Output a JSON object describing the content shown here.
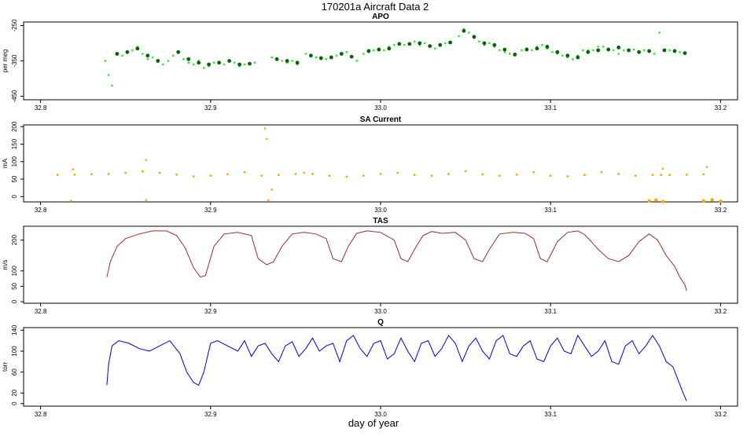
{
  "figure": {
    "title": "170201a   Aircraft Data 2",
    "xlabel": "day of year"
  },
  "chart_data": [
    {
      "type": "scatter",
      "title": "APO",
      "ylabel": "per meg",
      "xlim": [
        32.79,
        33.21
      ],
      "ylim": [
        -460,
        -240
      ],
      "xticks": [
        "32.8",
        "32.9",
        "33.0",
        "33.1",
        "33.2"
      ],
      "xtick_values": [
        32.8,
        32.9,
        33.0,
        33.1,
        33.2
      ],
      "yticks": [
        "-450",
        "-350",
        "-250"
      ],
      "ytick_values": [
        -450,
        -350,
        -250
      ],
      "colors": {
        "raw": "#33ee33",
        "avg": "#006400"
      },
      "series": [
        {
          "style": "points",
          "x": [
            32.838,
            32.84,
            32.842,
            32.845,
            32.848,
            32.851,
            32.854,
            32.857,
            32.86,
            32.863,
            32.866,
            32.869,
            32.872,
            32.875,
            32.878,
            32.881,
            32.884,
            32.887,
            32.89,
            32.893,
            32.896,
            32.899,
            32.902,
            32.905,
            32.908,
            32.911,
            32.914,
            32.917,
            32.92,
            32.923,
            32.926,
            32.936,
            32.939,
            32.942,
            32.945,
            32.948,
            32.951,
            32.956,
            32.959,
            32.962,
            32.965,
            32.968,
            32.971,
            32.974,
            32.977,
            32.98,
            32.983,
            32.986,
            32.99,
            32.993,
            32.996,
            32.999,
            33.002,
            33.005,
            33.008,
            33.011,
            33.014,
            33.017,
            33.02,
            33.023,
            33.026,
            33.029,
            33.032,
            33.035,
            33.038,
            33.041,
            33.046,
            33.049,
            33.052,
            33.055,
            33.058,
            33.061,
            33.064,
            33.067,
            33.07,
            33.073,
            33.076,
            33.079,
            33.083,
            33.086,
            33.089,
            33.092,
            33.095,
            33.098,
            33.101,
            33.104,
            33.107,
            33.11,
            33.113,
            33.116,
            33.119,
            33.122,
            33.125,
            33.128,
            33.131,
            33.134,
            33.137,
            33.14,
            33.143,
            33.146,
            33.149,
            33.152,
            33.155,
            33.158,
            33.161,
            33.164,
            33.167,
            33.17,
            33.173,
            33.176,
            33.179
          ],
          "y": [
            -350,
            -390,
            -420,
            -330,
            -335,
            -325,
            -320,
            -310,
            -330,
            -345,
            -340,
            -350,
            -360,
            -350,
            -335,
            -325,
            -345,
            -355,
            -360,
            -350,
            -370,
            -365,
            -355,
            -355,
            -360,
            -350,
            -355,
            -365,
            -360,
            -360,
            -355,
            -340,
            -345,
            -350,
            -355,
            -350,
            -360,
            -330,
            -335,
            -340,
            -345,
            -345,
            -340,
            -335,
            -330,
            -325,
            -340,
            -350,
            -330,
            -325,
            -320,
            -315,
            -320,
            -310,
            -305,
            -300,
            -305,
            -300,
            -295,
            -305,
            -300,
            -310,
            -315,
            -305,
            -300,
            -295,
            -280,
            -260,
            -270,
            -285,
            -295,
            -305,
            -300,
            -310,
            -320,
            -325,
            -330,
            -335,
            -320,
            -315,
            -320,
            -310,
            -305,
            -315,
            -325,
            -330,
            -335,
            -340,
            -345,
            -335,
            -320,
            -320,
            -320,
            -310,
            -310,
            -315,
            -320,
            -330,
            -320,
            -320,
            -318,
            -325,
            -320,
            -325,
            -330,
            -270,
            -320,
            -320,
            -325,
            -325,
            -330
          ]
        },
        {
          "style": "points-bold",
          "x": [
            32.845,
            32.851,
            32.857,
            32.863,
            32.869,
            32.881,
            32.887,
            32.893,
            32.899,
            32.905,
            32.911,
            32.917,
            32.923,
            32.939,
            32.945,
            32.951,
            32.959,
            32.965,
            32.971,
            32.977,
            32.983,
            32.993,
            32.999,
            33.005,
            33.011,
            33.017,
            33.023,
            33.029,
            33.035,
            33.041,
            33.049,
            33.055,
            33.061,
            33.067,
            33.073,
            33.079,
            33.086,
            33.092,
            33.098,
            33.104,
            33.11,
            33.116,
            33.122,
            33.128,
            33.134,
            33.14,
            33.146,
            33.152,
            33.158,
            33.167,
            33.173,
            33.179
          ],
          "y": [
            -330,
            -325,
            -315,
            -335,
            -350,
            -325,
            -345,
            -355,
            -360,
            -355,
            -350,
            -360,
            -358,
            -345,
            -350,
            -355,
            -335,
            -342,
            -340,
            -330,
            -338,
            -322,
            -318,
            -315,
            -302,
            -302,
            -300,
            -308,
            -305,
            -298,
            -265,
            -282,
            -300,
            -305,
            -318,
            -332,
            -318,
            -315,
            -310,
            -325,
            -335,
            -340,
            -325,
            -320,
            -318,
            -312,
            -320,
            -325,
            -322,
            -320,
            -322,
            -328
          ]
        }
      ]
    },
    {
      "type": "scatter",
      "title": "SA Current",
      "ylabel": "mA",
      "xlim": [
        32.79,
        33.21
      ],
      "ylim": [
        -15,
        205
      ],
      "xticks": [
        "32.8",
        "32.9",
        "33.0",
        "33.1",
        "33.2"
      ],
      "xtick_values": [
        32.8,
        32.9,
        33.0,
        33.1,
        33.2
      ],
      "yticks": [
        "0",
        "50",
        "100",
        "150",
        "200"
      ],
      "ytick_values": [
        0,
        50,
        100,
        150,
        200
      ],
      "colors": {
        "main": "#ffa500"
      },
      "series": [
        {
          "style": "points",
          "x": [
            32.81,
            32.82,
            32.83,
            32.84,
            32.85,
            32.86,
            32.87,
            32.88,
            32.89,
            32.9,
            32.91,
            32.92,
            32.93,
            32.94,
            32.95,
            32.955,
            32.96,
            32.97,
            32.98,
            32.99,
            33.0,
            33.01,
            33.02,
            33.03,
            33.04,
            33.05,
            33.06,
            33.07,
            33.08,
            33.09,
            33.1,
            33.11,
            33.12,
            33.13,
            33.14,
            33.15,
            33.16,
            33.165,
            33.17,
            33.18,
            33.19
          ],
          "y": [
            62,
            63,
            64,
            65,
            68,
            72,
            68,
            63,
            58,
            60,
            64,
            70,
            60,
            62,
            65,
            68,
            65,
            60,
            57,
            60,
            65,
            68,
            62,
            60,
            65,
            73,
            64,
            60,
            63,
            70,
            60,
            58,
            62,
            70,
            65,
            60,
            62,
            62,
            62,
            63,
            64
          ]
        },
        {
          "style": "outliers",
          "x": [
            32.818,
            32.819,
            32.862,
            32.932,
            32.933,
            32.934,
            32.936,
            32.862,
            33.166,
            33.192
          ],
          "y": [
            -12,
            78,
            105,
            195,
            165,
            -10,
            20,
            -10,
            80,
            85
          ]
        },
        {
          "style": "dropout",
          "x": [
            33.158,
            33.162,
            33.166,
            33.19,
            33.195,
            33.2
          ],
          "y": [
            -12,
            -10,
            -14,
            -12,
            -9,
            -13
          ]
        }
      ]
    },
    {
      "type": "line",
      "title": "TAS",
      "ylabel": "m/s",
      "xlim": [
        32.79,
        33.21
      ],
      "ylim": [
        -5,
        245
      ],
      "xticks": [
        "32.8",
        "32.9",
        "33.0",
        "33.1",
        "33.2"
      ],
      "xtick_values": [
        32.8,
        32.9,
        33.0,
        33.1,
        33.2
      ],
      "yticks": [
        "0",
        "50",
        "100",
        "200"
      ],
      "ytick_values": [
        0,
        50,
        100,
        200
      ],
      "colors": {
        "main": "#a52a2a"
      },
      "series": [
        {
          "x": [
            32.839,
            32.841,
            32.845,
            32.85,
            32.858,
            32.866,
            32.874,
            32.88,
            32.885,
            32.89,
            32.894,
            32.897,
            32.902,
            32.908,
            32.916,
            32.924,
            32.928,
            32.933,
            32.937,
            32.942,
            32.948,
            32.955,
            32.962,
            32.968,
            32.972,
            32.977,
            32.981,
            32.986,
            32.992,
            33.0,
            33.008,
            33.012,
            33.016,
            33.02,
            33.025,
            33.03,
            33.036,
            33.044,
            33.05,
            33.055,
            33.06,
            33.064,
            33.07,
            33.078,
            33.085,
            33.09,
            33.094,
            33.098,
            33.104,
            33.11,
            33.116,
            33.12,
            33.124,
            33.128,
            33.134,
            33.14,
            33.146,
            33.152,
            33.158,
            33.163,
            33.168,
            33.173,
            33.176,
            33.179,
            33.18
          ],
          "y": [
            80,
            130,
            180,
            205,
            220,
            230,
            230,
            215,
            175,
            110,
            80,
            85,
            180,
            220,
            225,
            215,
            140,
            120,
            130,
            180,
            220,
            225,
            220,
            205,
            140,
            130,
            180,
            222,
            230,
            225,
            200,
            140,
            130,
            170,
            215,
            228,
            222,
            225,
            200,
            140,
            130,
            170,
            220,
            225,
            222,
            205,
            140,
            130,
            195,
            225,
            230,
            218,
            195,
            170,
            140,
            130,
            150,
            195,
            220,
            200,
            150,
            115,
            80,
            55,
            35
          ]
        }
      ]
    },
    {
      "type": "line",
      "title": "Q",
      "ylabel": "torr",
      "xlim": [
        32.79,
        33.21
      ],
      "ylim": [
        -5,
        145
      ],
      "xticks": [
        "32.8",
        "32.9",
        "33.0",
        "33.1",
        "33.2"
      ],
      "xtick_values": [
        32.8,
        32.9,
        33.0,
        33.1,
        33.2
      ],
      "yticks": [
        "0",
        "20",
        "60",
        "100",
        "140"
      ],
      "ytick_values": [
        0,
        20,
        60,
        100,
        140
      ],
      "colors": {
        "main": "#0000dd"
      },
      "series": [
        {
          "x": [
            32.839,
            32.84,
            32.842,
            32.846,
            32.852,
            32.858,
            32.864,
            32.87,
            32.876,
            32.882,
            32.886,
            32.89,
            32.893,
            32.896,
            32.9,
            32.904,
            32.91,
            32.916,
            32.92,
            32.924,
            32.928,
            32.932,
            32.936,
            32.94,
            32.944,
            32.948,
            32.952,
            32.956,
            32.96,
            32.964,
            32.968,
            32.972,
            32.976,
            32.98,
            32.984,
            32.988,
            32.992,
            32.996,
            33.0,
            33.004,
            33.008,
            33.012,
            33.016,
            33.02,
            33.024,
            33.028,
            33.032,
            33.036,
            33.04,
            33.044,
            33.048,
            33.052,
            33.056,
            33.06,
            33.064,
            33.068,
            33.072,
            33.076,
            33.08,
            33.084,
            33.088,
            33.092,
            33.096,
            33.1,
            33.104,
            33.108,
            33.112,
            33.116,
            33.12,
            33.124,
            33.128,
            33.132,
            33.136,
            33.14,
            33.144,
            33.148,
            33.152,
            33.156,
            33.16,
            33.164,
            33.168,
            33.172,
            33.175,
            33.178,
            33.18
          ],
          "y": [
            35,
            75,
            110,
            120,
            115,
            105,
            100,
            110,
            120,
            95,
            60,
            40,
            35,
            60,
            115,
            120,
            110,
            100,
            120,
            90,
            110,
            115,
            95,
            80,
            110,
            118,
            90,
            105,
            125,
            100,
            110,
            115,
            80,
            120,
            130,
            105,
            90,
            115,
            120,
            85,
            95,
            125,
            100,
            80,
            115,
            120,
            90,
            105,
            130,
            115,
            80,
            110,
            125,
            100,
            85,
            120,
            130,
            95,
            90,
            110,
            120,
            85,
            80,
            110,
            125,
            100,
            95,
            130,
            110,
            90,
            100,
            120,
            80,
            75,
            110,
            120,
            95,
            110,
            130,
            110,
            80,
            70,
            45,
            20,
            5
          ]
        }
      ]
    }
  ]
}
